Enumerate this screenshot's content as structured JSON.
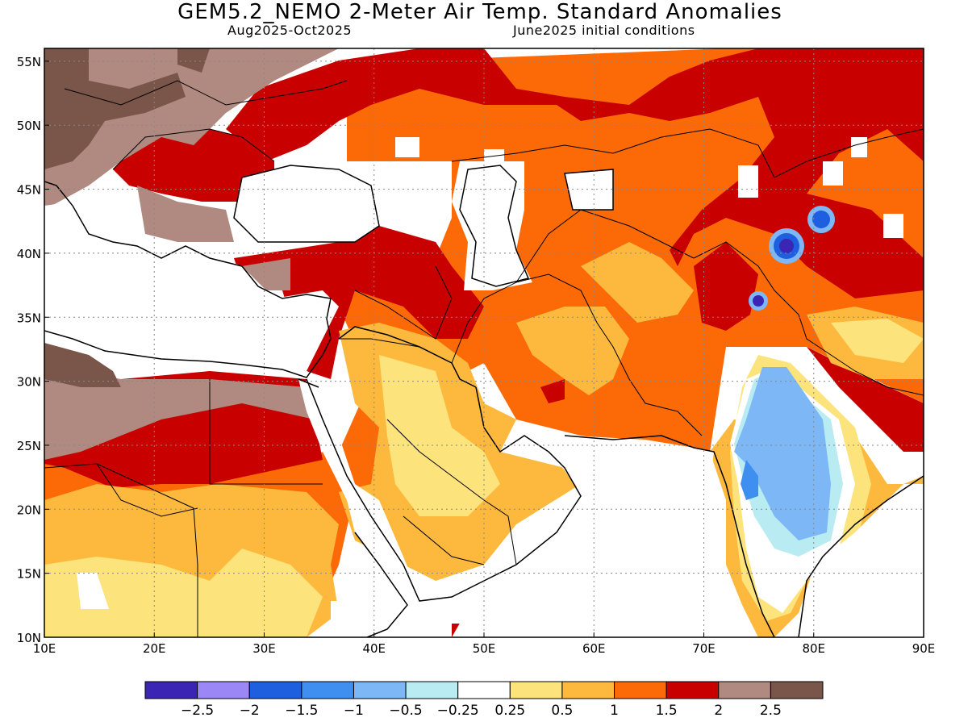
{
  "title": "GEM5.2_NEMO 2-Meter Air Temp. Standard Anomalies",
  "subtitle_period": "Aug2025-Oct2025",
  "subtitle_init": "June2025 initial conditions",
  "map": {
    "lon_range": [
      10,
      90
    ],
    "lat_range": [
      10,
      56
    ],
    "lon_ticks": [
      "10E",
      "20E",
      "30E",
      "40E",
      "50E",
      "60E",
      "70E",
      "80E",
      "90E"
    ],
    "lat_ticks": [
      "10N",
      "15N",
      "20N",
      "25N",
      "30N",
      "35N",
      "40N",
      "45N",
      "50N",
      "55N"
    ],
    "gridlines": "dotted"
  },
  "colorbar": {
    "colors": [
      "#3a25b4",
      "#9b87f5",
      "#1e5fe0",
      "#3e8ff0",
      "#7db7f5",
      "#b8ecf2",
      "#ffffff",
      "#fde37c",
      "#fdb93e",
      "#fc6a08",
      "#c80000",
      "#b08a80",
      "#7a554a"
    ],
    "labels": [
      "-2.5",
      "-2",
      "-1.5",
      "-1",
      "-0.5",
      "-0.25",
      "0.25",
      "0.5",
      "1",
      "1.5",
      "2",
      "2.5"
    ]
  }
}
